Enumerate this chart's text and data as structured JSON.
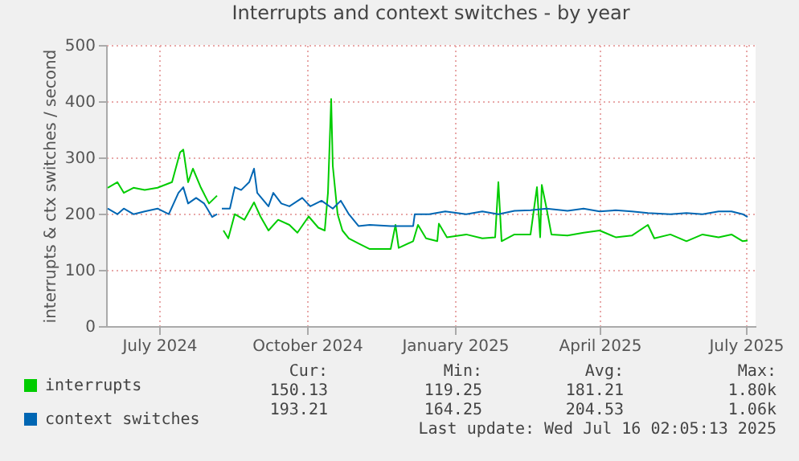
{
  "chart_data": {
    "type": "line",
    "title": "Interrupts and context switches - by year",
    "ylabel": "interrupts & ctx switches / second",
    "xlim": [
      "2024-06-12",
      "2025-07-21"
    ],
    "xticks": [
      {
        "value": "2024-07-15",
        "label": "July 2024"
      },
      {
        "value": "2024-10-15",
        "label": "October 2024"
      },
      {
        "value": "2025-01-15",
        "label": "January 2025"
      },
      {
        "value": "2025-04-15",
        "label": "April 2025"
      },
      {
        "value": "2025-07-15",
        "label": "July 2025"
      }
    ],
    "ylim": [
      0,
      500
    ],
    "yticks": [
      0,
      100,
      200,
      300,
      400,
      500
    ],
    "grid": true,
    "legend": "bottom left",
    "marker": "none",
    "line_style": "solid",
    "series": [
      {
        "name": "interrupts",
        "color": "#00cc00",
        "x": [
          "2024-06-13",
          "2024-06-19",
          "2024-06-23",
          "2024-06-29",
          "2024-07-06",
          "2024-07-14",
          "2024-07-23",
          "2024-07-28",
          "2024-07-30",
          "2024-08-02",
          "2024-08-05",
          "2024-08-10",
          "2024-08-15",
          "2024-08-20",
          "2024-08-22",
          "2024-08-24",
          "2024-08-27",
          "2024-08-31",
          "2024-09-06",
          "2024-09-12",
          "2024-09-16",
          "2024-09-21",
          "2024-09-27",
          "2024-10-04",
          "2024-10-09",
          "2024-10-16",
          "2024-10-22",
          "2024-10-26",
          "2024-10-28",
          "2024-10-30",
          "2024-10-31",
          "2024-11-03",
          "2024-11-06",
          "2024-11-10",
          "2024-11-16",
          "2024-11-23",
          "2024-11-30",
          "2024-12-06",
          "2024-12-09",
          "2024-12-11",
          "2024-12-20",
          "2024-12-23",
          "2024-12-28",
          "2025-01-04",
          "2025-01-05",
          "2025-01-10",
          "2025-01-22",
          "2025-02-01",
          "2025-02-09",
          "2025-02-11",
          "2025-02-13",
          "2025-02-21",
          "2025-03-03",
          "2025-03-07",
          "2025-03-09",
          "2025-03-10",
          "2025-03-13",
          "2025-03-16",
          "2025-03-26",
          "2025-04-05",
          "2025-04-15",
          "2025-04-25",
          "2025-05-05",
          "2025-05-15",
          "2025-05-19",
          "2025-05-29",
          "2025-06-08",
          "2025-06-18",
          "2025-06-28",
          "2025-07-06",
          "2025-07-13",
          "2025-07-16"
        ],
        "values": [
          246,
          256,
          237,
          246,
          242,
          246,
          256,
          309,
          314,
          256,
          280,
          246,
          218,
          232,
          null,
          170,
          156,
          199,
          189,
          220,
          195,
          170,
          189,
          180,
          166,
          195,
          175,
          170,
          237,
          404,
          285,
          199,
          170,
          156,
          147,
          137,
          137,
          137,
          180,
          139,
          151,
          180,
          156,
          151,
          182,
          158,
          163,
          156,
          158,
          256,
          151,
          163,
          163,
          247,
          158,
          251,
          209,
          163,
          161,
          166,
          170,
          158,
          161,
          180,
          156,
          163,
          151,
          163,
          158,
          163,
          151,
          152
        ]
      },
      {
        "name": "context switches",
        "color": "#0066b3",
        "x": [
          "2024-06-13",
          "2024-06-19",
          "2024-06-23",
          "2024-06-29",
          "2024-07-06",
          "2024-07-14",
          "2024-07-21",
          "2024-07-27",
          "2024-07-30",
          "2024-08-02",
          "2024-08-07",
          "2024-08-12",
          "2024-08-17",
          "2024-08-20",
          "2024-08-22",
          "2024-08-23",
          "2024-08-28",
          "2024-08-31",
          "2024-09-04",
          "2024-09-09",
          "2024-09-12",
          "2024-09-14",
          "2024-09-21",
          "2024-09-24",
          "2024-09-29",
          "2024-10-04",
          "2024-10-12",
          "2024-10-17",
          "2024-10-24",
          "2024-10-31",
          "2024-11-05",
          "2024-11-10",
          "2024-11-16",
          "2024-11-23",
          "2024-12-06",
          "2024-12-20",
          "2024-12-21",
          "2024-12-30",
          "2025-01-09",
          "2025-01-22",
          "2025-02-01",
          "2025-02-11",
          "2025-02-21",
          "2025-03-03",
          "2025-03-13",
          "2025-03-26",
          "2025-04-05",
          "2025-04-15",
          "2025-04-25",
          "2025-05-05",
          "2025-05-15",
          "2025-05-29",
          "2025-06-08",
          "2025-06-18",
          "2025-06-28",
          "2025-07-06",
          "2025-07-13",
          "2025-07-16"
        ],
        "values": [
          209,
          199,
          209,
          199,
          204,
          209,
          199,
          237,
          247,
          218,
          228,
          218,
          194,
          199,
          null,
          209,
          209,
          247,
          242,
          256,
          280,
          237,
          213,
          237,
          218,
          213,
          228,
          213,
          223,
          209,
          223,
          199,
          178,
          180,
          178,
          178,
          199,
          199,
          204,
          199,
          204,
          199,
          205,
          206,
          209,
          205,
          209,
          204,
          206,
          204,
          201,
          199,
          201,
          199,
          204,
          204,
          199,
          194
        ]
      }
    ],
    "annotations": [
      "Cur:",
      "Min:",
      "Avg:",
      "Max:",
      "150.13",
      "119.25",
      "181.21",
      "1.80k",
      "193.21",
      "164.25",
      "204.53",
      "1.06k",
      "Last update: Wed Jul 16 02:05:13 2025"
    ]
  }
}
